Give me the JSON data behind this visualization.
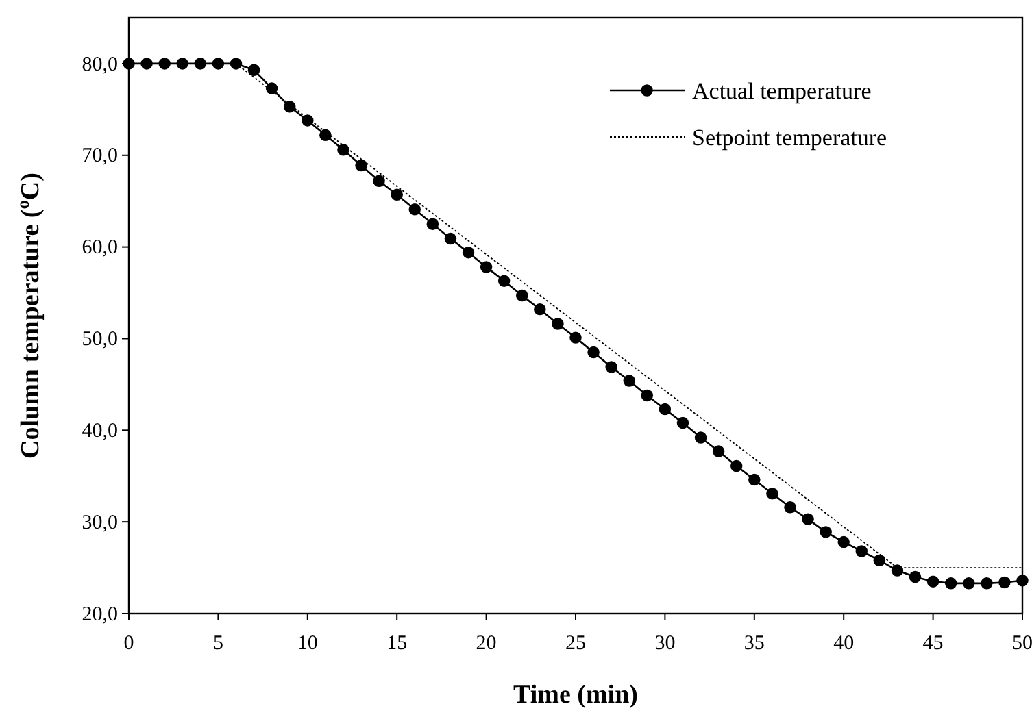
{
  "chart_data": {
    "type": "line",
    "xlabel": "Time (min)",
    "ylabel": "Column temperature ($^{o}$C)",
    "xlim": [
      0,
      50
    ],
    "xticks": [
      0,
      5,
      10,
      15,
      20,
      25,
      30,
      35,
      40,
      45,
      50
    ],
    "ylim": [
      20,
      85
    ],
    "yticks": [
      {
        "value": 20,
        "label": "20,0"
      },
      {
        "value": 30,
        "label": "30,0"
      },
      {
        "value": 40,
        "label": "40,0"
      },
      {
        "value": 50,
        "label": "50,0"
      },
      {
        "value": 60,
        "label": "60,0"
      },
      {
        "value": 70,
        "label": "70,0"
      },
      {
        "value": 80,
        "label": "80,0"
      }
    ],
    "grid": false,
    "legend": "top right",
    "x": [
      0,
      1,
      2,
      3,
      4,
      5,
      6,
      7,
      8,
      9,
      10,
      11,
      12,
      13,
      14,
      15,
      16,
      17,
      18,
      19,
      20,
      21,
      22,
      23,
      24,
      25,
      26,
      27,
      28,
      29,
      30,
      31,
      32,
      33,
      34,
      35,
      36,
      37,
      38,
      39,
      40,
      41,
      42,
      43,
      44,
      45,
      46,
      47,
      48,
      49,
      50
    ],
    "series": [
      {
        "name": "Actual temperature",
        "color": "#000000",
        "marker": "circle",
        "line_style": "solid",
        "values": [
          80,
          80,
          80,
          80,
          80,
          80,
          80,
          79.3,
          77.3,
          75.3,
          73.8,
          72.2,
          70.6,
          68.9,
          67.2,
          65.7,
          64.1,
          62.5,
          60.9,
          59.4,
          57.8,
          56.3,
          54.7,
          53.2,
          51.6,
          50.1,
          48.5,
          46.9,
          45.4,
          43.8,
          42.3,
          40.8,
          39.2,
          37.7,
          36.1,
          34.6,
          33.1,
          31.6,
          30.3,
          28.9,
          27.8,
          26.8,
          25.8,
          24.7,
          24.0,
          23.5,
          23.3,
          23.3,
          23.3,
          23.4,
          23.6
        ]
      },
      {
        "name": "Setpoint temperature",
        "color": "#000000",
        "marker": "none",
        "line_style": "dotted",
        "x": [
          0,
          6,
          43,
          50
        ],
        "values": [
          80,
          80,
          25,
          25
        ]
      }
    ]
  }
}
